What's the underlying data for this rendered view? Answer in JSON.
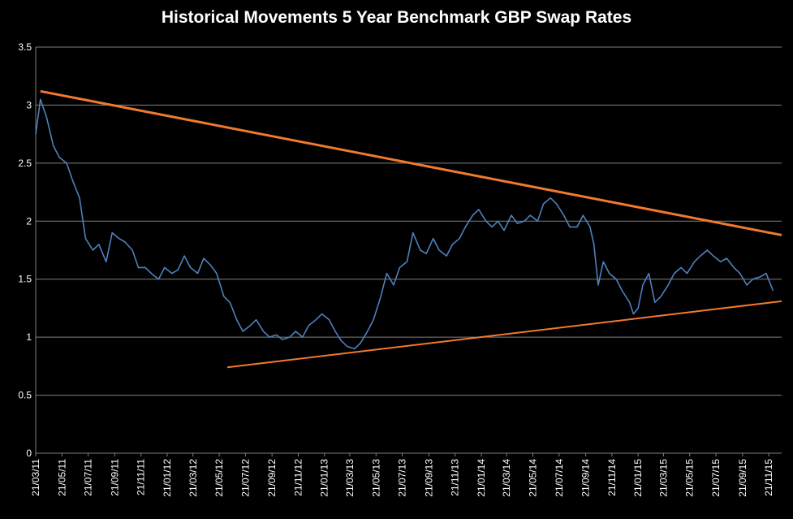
{
  "chart_data": {
    "type": "line",
    "title": "Historical Movements 5 Year Benchmark GBP Swap Rates",
    "xlabel": "",
    "ylabel": "",
    "ylim": [
      0,
      3.5
    ],
    "yticks": [
      "0",
      "0.5",
      "1",
      "1.5",
      "2",
      "2.5",
      "3",
      "3.5"
    ],
    "xticks": [
      "21/03/11",
      "21/05/11",
      "21/07/11",
      "21/09/11",
      "21/11/11",
      "21/01/12",
      "21/03/12",
      "21/05/12",
      "21/07/12",
      "21/09/12",
      "21/11/12",
      "21/01/13",
      "21/03/13",
      "21/05/13",
      "21/07/13",
      "21/09/13",
      "21/11/13",
      "21/01/14",
      "21/03/14",
      "21/05/14",
      "21/07/14",
      "21/09/14",
      "21/11/14",
      "21/01/15",
      "21/03/15",
      "21/05/15",
      "21/07/15",
      "21/09/15",
      "21/11/15"
    ],
    "grid": "horizontal",
    "background": "#000000",
    "colors": {
      "series": "#4F81BD",
      "trend": "#F07A2E",
      "grid": "#808080",
      "text": "#ffffff"
    },
    "series": [
      {
        "x": [
          "21/03/11",
          "01/04/11",
          "15/04/11",
          "01/05/11",
          "15/05/11",
          "01/06/11",
          "15/06/11",
          "01/07/11",
          "15/07/11",
          "01/08/11",
          "15/08/11",
          "01/09/11",
          "15/09/11",
          "01/10/11",
          "15/10/11",
          "01/11/11",
          "15/11/11",
          "01/12/11",
          "15/12/11",
          "01/01/12",
          "15/01/12",
          "01/02/12",
          "15/02/12",
          "01/03/12",
          "15/03/12",
          "01/04/12",
          "15/04/12",
          "01/05/12",
          "15/05/12",
          "01/06/12",
          "15/06/12",
          "01/07/12",
          "15/07/12",
          "01/08/12",
          "15/08/12",
          "01/09/12",
          "15/09/12",
          "01/10/12",
          "15/10/12",
          "01/11/12",
          "15/11/12",
          "01/12/12",
          "15/12/12",
          "01/01/13",
          "15/01/13",
          "01/02/13",
          "15/02/13",
          "01/03/13",
          "15/03/13",
          "01/04/13",
          "15/04/13",
          "01/05/13",
          "15/05/13",
          "01/06/13",
          "15/06/13",
          "01/07/13",
          "15/07/13",
          "01/08/13",
          "15/08/13",
          "01/09/13",
          "15/09/13",
          "01/10/13",
          "15/10/13",
          "01/11/13",
          "15/11/13",
          "01/12/13",
          "15/12/13",
          "01/01/14",
          "15/01/14",
          "01/02/14",
          "15/02/14",
          "01/03/14",
          "15/03/14",
          "01/04/14",
          "15/04/14",
          "01/05/14",
          "15/05/14",
          "01/06/14",
          "15/06/14",
          "01/07/14",
          "15/07/14",
          "01/08/14",
          "15/08/14",
          "01/09/14",
          "15/09/14",
          "01/10/14",
          "10/10/14",
          "20/10/14",
          "01/11/14",
          "15/11/14",
          "01/12/14",
          "15/12/14",
          "01/01/15",
          "10/01/15",
          "21/01/15",
          "01/02/15",
          "15/02/15",
          "01/03/15",
          "15/03/15",
          "01/04/15",
          "15/04/15",
          "01/05/15",
          "15/05/15",
          "01/06/15",
          "15/06/15",
          "01/07/15",
          "15/07/15",
          "01/08/15",
          "15/08/15",
          "01/09/15",
          "15/09/15",
          "01/10/15",
          "15/10/15",
          "01/11/15",
          "15/11/15",
          "01/12/15"
        ],
        "values": [
          2.75,
          3.05,
          2.9,
          2.65,
          2.55,
          2.5,
          2.35,
          2.2,
          1.85,
          1.75,
          1.8,
          1.65,
          1.9,
          1.85,
          1.82,
          1.75,
          1.6,
          1.6,
          1.55,
          1.5,
          1.6,
          1.55,
          1.58,
          1.7,
          1.6,
          1.55,
          1.68,
          1.62,
          1.55,
          1.35,
          1.3,
          1.15,
          1.05,
          1.1,
          1.15,
          1.05,
          1.0,
          1.02,
          0.98,
          1.0,
          1.05,
          1.0,
          1.1,
          1.15,
          1.2,
          1.15,
          1.05,
          0.97,
          0.92,
          0.9,
          0.95,
          1.05,
          1.15,
          1.35,
          1.55,
          1.45,
          1.6,
          1.65,
          1.9,
          1.75,
          1.72,
          1.85,
          1.75,
          1.7,
          1.8,
          1.85,
          1.95,
          2.05,
          2.1,
          2.0,
          1.95,
          2.0,
          1.92,
          2.05,
          1.98,
          2.0,
          2.05,
          2.0,
          2.15,
          2.2,
          2.15,
          2.05,
          1.95,
          1.95,
          2.05,
          1.95,
          1.8,
          1.45,
          1.65,
          1.55,
          1.5,
          1.4,
          1.3,
          1.2,
          1.25,
          1.45,
          1.55,
          1.3,
          1.35,
          1.45,
          1.55,
          1.6,
          1.55,
          1.65,
          1.7,
          1.75,
          1.7,
          1.65,
          1.68,
          1.6,
          1.55,
          1.45,
          1.5,
          1.52,
          1.55,
          1.4
        ]
      }
    ],
    "trendlines": [
      {
        "name": "upper",
        "x": [
          "01/04/11",
          "21/12/15"
        ],
        "values": [
          3.12,
          1.88
        ]
      },
      {
        "name": "lower",
        "x": [
          "09/06/12",
          "21/12/15"
        ],
        "values": [
          0.74,
          1.31
        ]
      }
    ]
  }
}
